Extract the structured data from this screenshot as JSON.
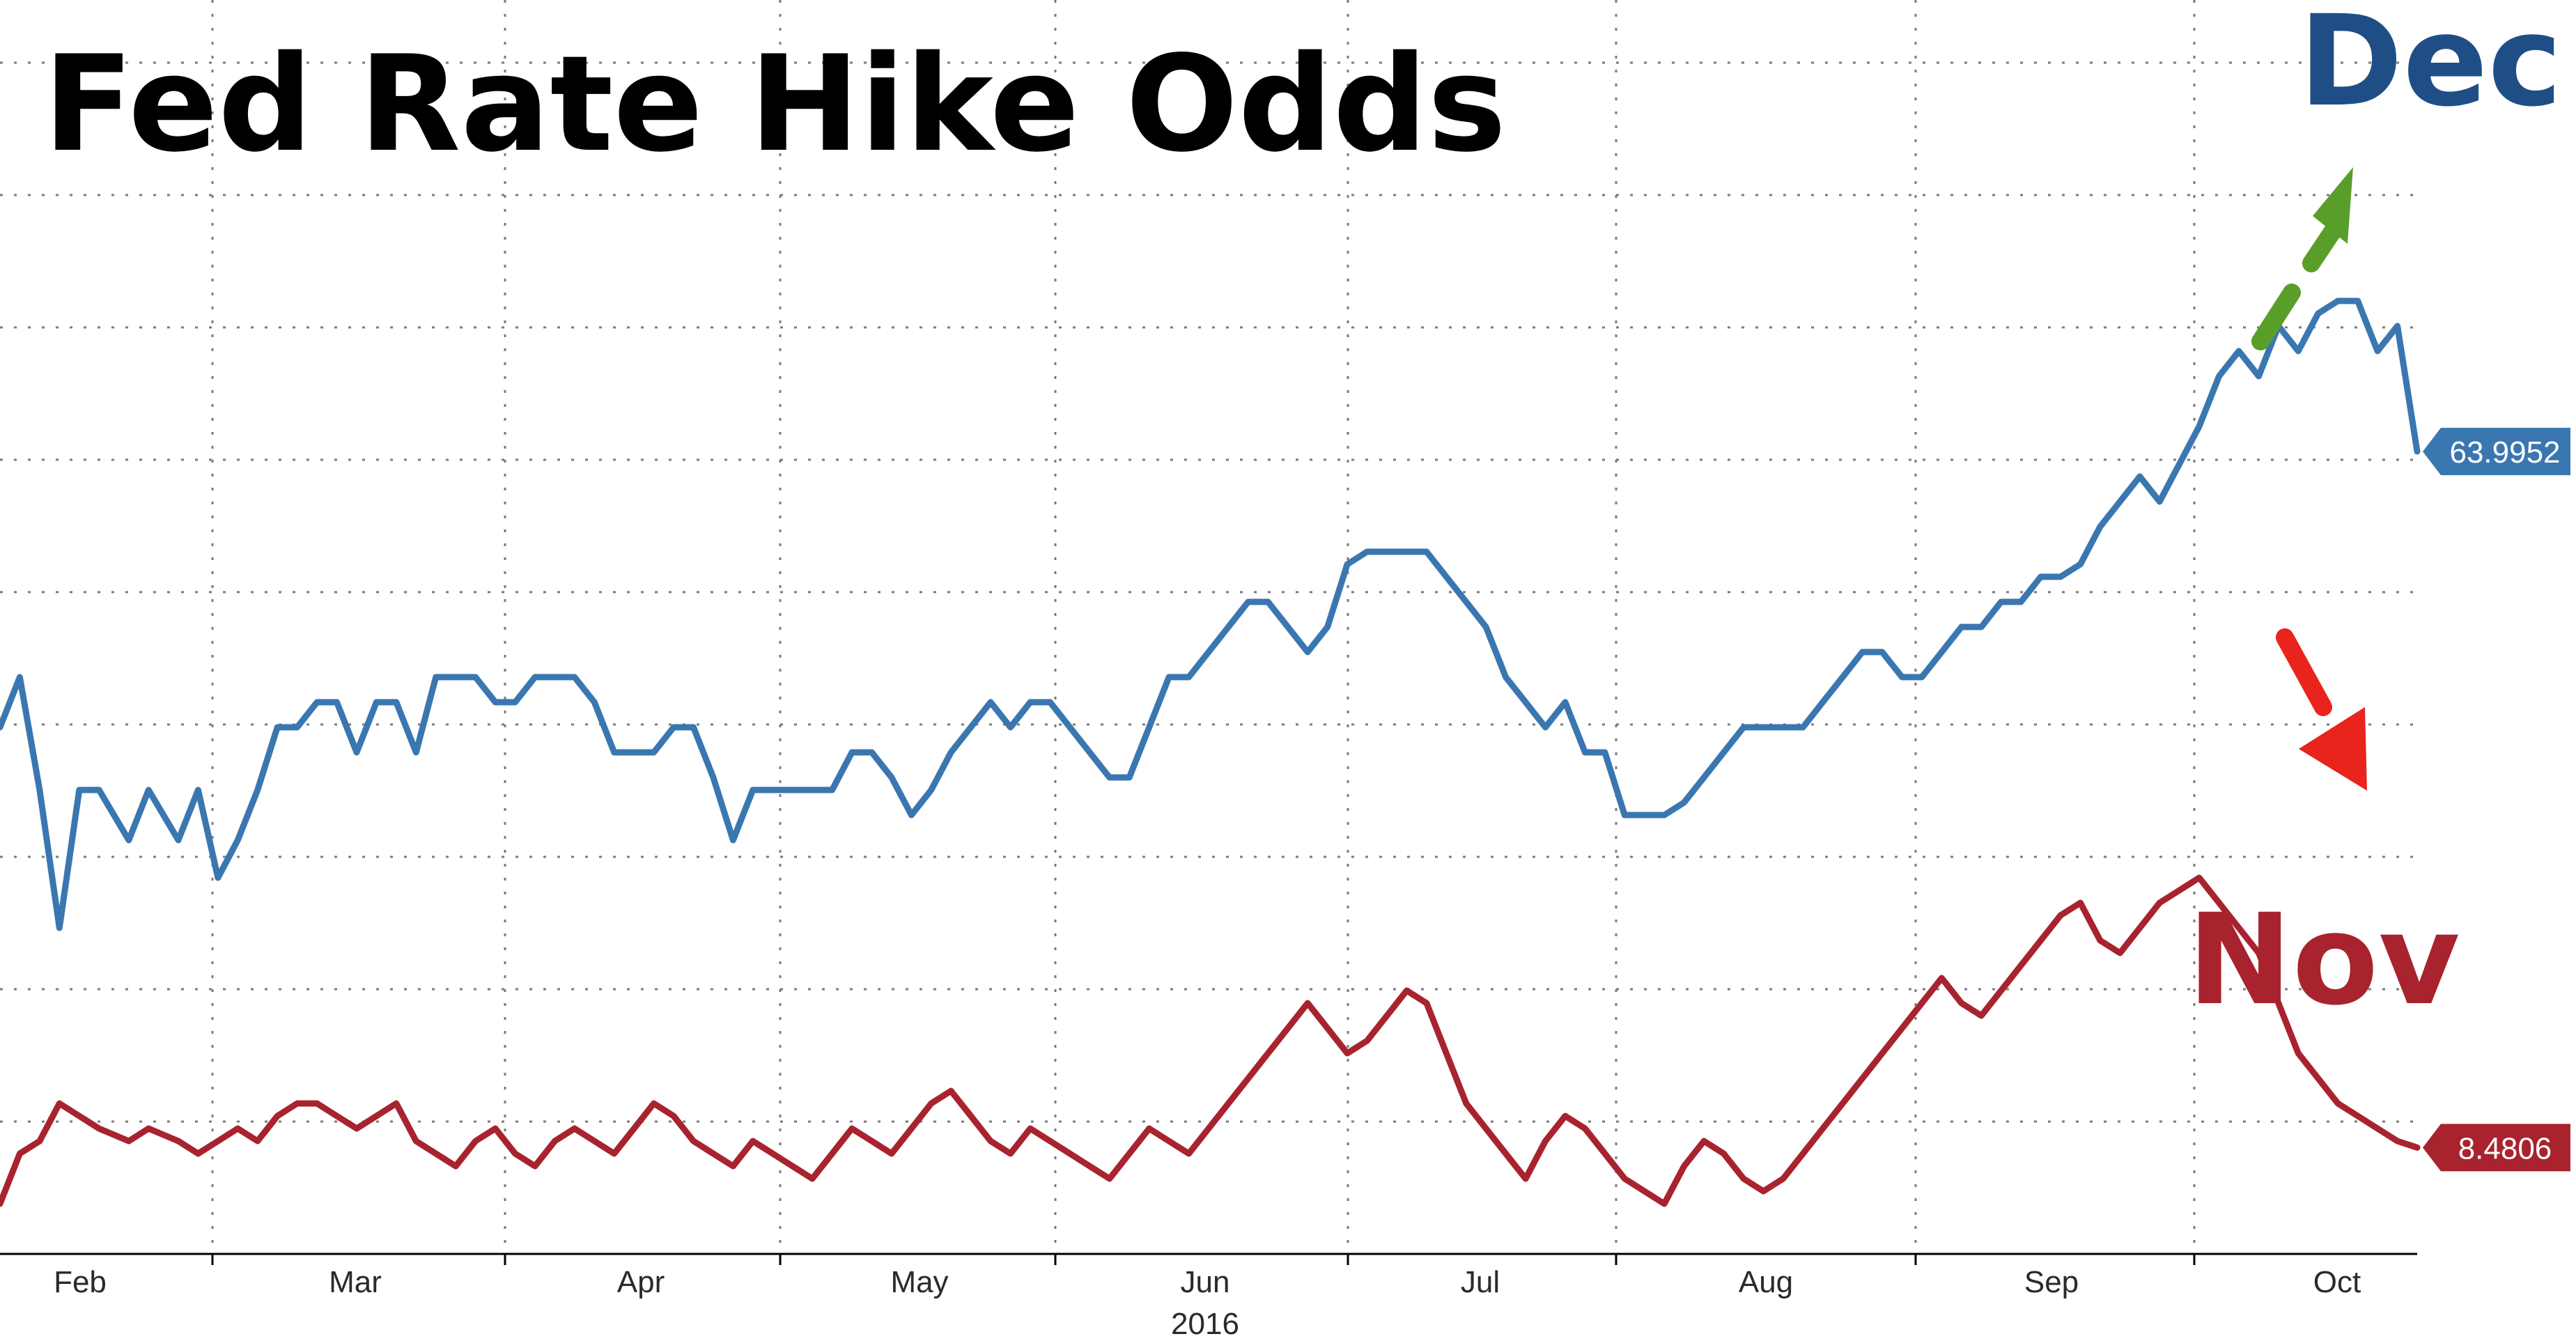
{
  "chart_data": {
    "type": "line",
    "title": "Fed Rate Hike Odds",
    "xlabel": "",
    "ylabel": "",
    "x_tick_labels": [
      "Feb",
      "Mar",
      "Apr",
      "May",
      "Jun",
      "Jul",
      "Aug",
      "Sep",
      "Oct"
    ],
    "x_year_label": "2016",
    "ylim": [
      0,
      100
    ],
    "grid": true,
    "series": [
      {
        "name": "Dec",
        "color": "#3a77b0",
        "end_value_label": "63.9952",
        "x": [
          0,
          2,
          4,
          6,
          8,
          10,
          13,
          15,
          18,
          20,
          22,
          24,
          26,
          28,
          30,
          32,
          34,
          36,
          38,
          40,
          42,
          44,
          46,
          48,
          50,
          52,
          54,
          56,
          58,
          60,
          62,
          64,
          66,
          68,
          70,
          72,
          74,
          76,
          78,
          80,
          82,
          84,
          86,
          88,
          90,
          92,
          94,
          96,
          98,
          100,
          102,
          104,
          106,
          108,
          110,
          112,
          114,
          116,
          118,
          120,
          122,
          124,
          126,
          128,
          130,
          132,
          134,
          136,
          138,
          140,
          142,
          144,
          146,
          148,
          150,
          152,
          154,
          156,
          158,
          160,
          162,
          164,
          166,
          168,
          170,
          172,
          174,
          176,
          178,
          180,
          182,
          184,
          186,
          188,
          190,
          192,
          194,
          196,
          198,
          200,
          202,
          204,
          206,
          208,
          210,
          212,
          214,
          216,
          218,
          220,
          222,
          224,
          226,
          228,
          230,
          232,
          234,
          236,
          238,
          240,
          242,
          244
        ],
        "values": [
          42,
          46,
          37,
          26,
          37,
          37,
          33,
          37,
          33,
          37,
          30,
          33,
          37,
          42,
          42,
          44,
          44,
          40,
          44,
          44,
          40,
          46,
          46,
          46,
          44,
          44,
          46,
          46,
          46,
          44,
          40,
          40,
          40,
          42,
          42,
          38,
          33,
          37,
          37,
          37,
          37,
          37,
          40,
          40,
          38,
          35,
          37,
          40,
          42,
          44,
          42,
          44,
          44,
          42,
          40,
          38,
          38,
          42,
          46,
          46,
          48,
          50,
          52,
          52,
          50,
          48,
          50,
          55,
          56,
          56,
          56,
          56,
          54,
          52,
          50,
          46,
          44,
          42,
          44,
          40,
          40,
          35,
          35,
          35,
          36,
          38,
          40,
          42,
          42,
          42,
          42,
          44,
          46,
          48,
          48,
          46,
          46,
          48,
          50,
          50,
          52,
          52,
          54,
          54,
          55,
          58,
          60,
          62,
          60,
          63,
          66,
          70,
          72,
          70,
          74,
          72,
          75,
          76,
          76,
          72,
          74,
          64
        ],
        "end_value": 63.9952
      },
      {
        "name": "Nov",
        "color": "#a8232e",
        "end_value_label": "8.4806",
        "x": [
          0,
          2,
          4,
          6,
          8,
          10,
          13,
          15,
          18,
          20,
          22,
          24,
          26,
          28,
          30,
          32,
          34,
          36,
          38,
          40,
          42,
          44,
          46,
          48,
          50,
          52,
          54,
          56,
          58,
          60,
          62,
          64,
          66,
          68,
          70,
          72,
          74,
          76,
          78,
          80,
          82,
          84,
          86,
          88,
          90,
          92,
          94,
          96,
          98,
          100,
          102,
          104,
          106,
          108,
          110,
          112,
          114,
          116,
          118,
          120,
          122,
          124,
          126,
          128,
          130,
          132,
          134,
          136,
          138,
          140,
          142,
          144,
          146,
          148,
          150,
          152,
          154,
          156,
          158,
          160,
          162,
          164,
          166,
          168,
          170,
          172,
          174,
          176,
          178,
          180,
          182,
          184,
          186,
          188,
          190,
          192,
          194,
          196,
          198,
          200,
          202,
          204,
          206,
          208,
          210,
          212,
          214,
          216,
          218,
          220,
          222,
          224,
          226,
          228,
          230,
          232,
          234,
          236,
          238,
          240,
          242,
          244
        ],
        "values": [
          4,
          8,
          9,
          12,
          11,
          10,
          9,
          10,
          9,
          8,
          9,
          10,
          9,
          11,
          12,
          12,
          11,
          10,
          11,
          12,
          9,
          8,
          7,
          9,
          10,
          8,
          7,
          9,
          10,
          9,
          8,
          10,
          12,
          11,
          9,
          8,
          7,
          9,
          8,
          7,
          6,
          8,
          10,
          9,
          8,
          10,
          12,
          13,
          11,
          9,
          8,
          10,
          9,
          8,
          7,
          6,
          8,
          10,
          9,
          8,
          10,
          12,
          14,
          16,
          18,
          20,
          18,
          16,
          17,
          19,
          21,
          20,
          16,
          12,
          10,
          8,
          6,
          9,
          11,
          10,
          8,
          6,
          5,
          4,
          7,
          9,
          8,
          6,
          5,
          6,
          8,
          10,
          12,
          14,
          16,
          18,
          20,
          22,
          20,
          19,
          21,
          23,
          25,
          27,
          28,
          25,
          24,
          26,
          28,
          29,
          30,
          28,
          26,
          24,
          20,
          16,
          14,
          12,
          11,
          10,
          9,
          8.4806
        ],
        "end_value": 8.4806
      }
    ],
    "annotations": [
      {
        "type": "arrow",
        "color": "#5a9e2a",
        "direction": "up-right",
        "near_series": "Dec"
      },
      {
        "type": "arrow",
        "color": "#e8241c",
        "direction": "down-right",
        "near_series": "Nov"
      }
    ]
  }
}
